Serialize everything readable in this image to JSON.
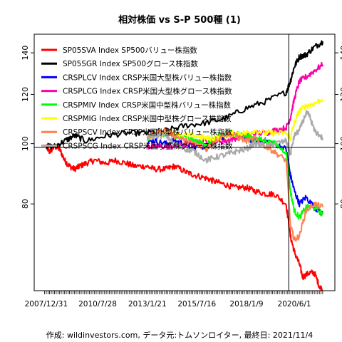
{
  "chart_data": {
    "type": "line",
    "title": "相対株価 vs S-P 500種 (1)",
    "caption": "作成: wildinvestors.com, データ元:トムソンロイター, 最終日: 2021/11/4",
    "xlabel": "",
    "ylabel": "",
    "x_range": [
      "2007-12-31",
      "2021-11-04"
    ],
    "x_tick_labels": [
      "2007/12/31",
      "2010/7/28",
      "2013/1/21",
      "2015/7/16",
      "2018/1/9",
      "2020/6/1"
    ],
    "x_tick_dates": [
      "2007-12-31",
      "2010-07-28",
      "2013-01-21",
      "2015-07-16",
      "2018-01-09",
      "2020-06-01"
    ],
    "ylim": [
      58,
      150
    ],
    "y_ticks": [
      80,
      100,
      120,
      140
    ],
    "y_log": true,
    "reference_line_y": 98.7,
    "reference_line_x": "2020-02-20",
    "grid": false,
    "legend_position": "top-left",
    "series": [
      {
        "name": "SP05SVA Index SP500バリュー株指数",
        "color": "#ff0000",
        "x": [
          "2007-12-31",
          "2008-03-01",
          "2008-06-01",
          "2008-09-01",
          "2008-12-01",
          "2009-03-01",
          "2009-06-01",
          "2009-09-01",
          "2010-01-01",
          "2010-06-01",
          "2011-01-01",
          "2011-06-01",
          "2012-01-01",
          "2012-06-01",
          "2013-01-01",
          "2013-06-01",
          "2014-01-01",
          "2014-06-01",
          "2015-01-01",
          "2015-06-01",
          "2016-01-01",
          "2016-06-01",
          "2016-12-01",
          "2017-06-01",
          "2018-01-01",
          "2018-06-01",
          "2019-01-01",
          "2019-06-01",
          "2020-01-01",
          "2020-03-20",
          "2020-06-01",
          "2020-09-01",
          "2020-11-01",
          "2021-03-01",
          "2021-06-01",
          "2021-09-01",
          "2021-11-04"
        ],
        "y": [
          99,
          97,
          99,
          98,
          94,
          92,
          91,
          92,
          93,
          94,
          93,
          94,
          93,
          92,
          92,
          91,
          91,
          92,
          90,
          89,
          88,
          87,
          86,
          85,
          85,
          84,
          83,
          83,
          80,
          71,
          67,
          64,
          61,
          62,
          62,
          59,
          58
        ]
      },
      {
        "name": "SP05SGR Index SP500グロース株指数",
        "color": "#000000",
        "x": [
          "2007-12-31",
          "2008-06-01",
          "2008-12-01",
          "2009-06-01",
          "2010-01-01",
          "2011-01-01",
          "2012-01-01",
          "2013-01-01",
          "2014-01-01",
          "2015-01-01",
          "2016-01-01",
          "2017-01-01",
          "2018-01-01",
          "2019-01-01",
          "2020-01-01",
          "2020-03-20",
          "2020-06-01",
          "2020-09-01",
          "2021-01-01",
          "2021-06-01",
          "2021-11-04"
        ],
        "y": [
          99,
          99,
          101,
          103,
          101,
          103,
          104,
          104,
          105,
          107,
          108,
          110,
          114,
          117,
          121,
          126,
          133,
          138,
          139,
          143,
          146
        ]
      },
      {
        "name": "CRSPLCV Index CRSP米国大型株バリュー株指数",
        "color": "#0000ff",
        "x": [
          "2013-01-21",
          "2013-06-01",
          "2014-01-01",
          "2014-06-01",
          "2015-01-01",
          "2015-06-01",
          "2016-01-01",
          "2016-06-01",
          "2017-01-01",
          "2017-06-01",
          "2018-01-01",
          "2018-06-01",
          "2019-01-01",
          "2019-06-01",
          "2020-01-01",
          "2020-03-20",
          "2020-06-01",
          "2020-09-01",
          "2021-01-01",
          "2021-06-01",
          "2021-11-04"
        ],
        "y": [
          101,
          101,
          100,
          101,
          100,
          99,
          99,
          101,
          103,
          104,
          102,
          101,
          101,
          100,
          98,
          89,
          84,
          80,
          82,
          79,
          77
        ]
      },
      {
        "name": "CRSPLCG Index CRSP米国大型株グロース株指数",
        "color": "#ff00aa",
        "x": [
          "2013-01-21",
          "2013-06-01",
          "2014-01-01",
          "2014-06-01",
          "2015-01-01",
          "2015-06-01",
          "2016-01-01",
          "2016-06-01",
          "2017-01-01",
          "2017-06-01",
          "2018-01-01",
          "2018-06-01",
          "2019-01-01",
          "2019-06-01",
          "2020-01-01",
          "2020-03-20",
          "2020-06-01",
          "2020-09-01",
          "2021-01-01",
          "2021-06-01",
          "2021-11-04"
        ],
        "y": [
          99,
          99,
          99,
          99,
          100,
          100,
          101,
          101,
          101,
          102,
          103,
          104,
          104,
          105,
          106,
          110,
          118,
          126,
          128,
          131,
          134
        ]
      },
      {
        "name": "CRSPMIV Index CRSP米国中型株バリュー株指数",
        "color": "#00ff00",
        "x": [
          "2013-01-21",
          "2013-06-01",
          "2014-01-01",
          "2014-06-01",
          "2015-01-01",
          "2015-06-01",
          "2016-01-01",
          "2016-06-01",
          "2017-01-01",
          "2017-06-01",
          "2018-01-01",
          "2018-06-01",
          "2019-01-01",
          "2019-06-01",
          "2020-01-01",
          "2020-03-20",
          "2020-06-01",
          "2020-09-01",
          "2021-01-01",
          "2021-06-01",
          "2021-11-04"
        ],
        "y": [
          102,
          103,
          104,
          103,
          102,
          101,
          100,
          102,
          104,
          104,
          103,
          102,
          101,
          100,
          97,
          84,
          78,
          76,
          79,
          79,
          77
        ]
      },
      {
        "name": "CRSPMIG Index CRSP米国中型株グロース株指数",
        "color": "#ffff00",
        "x": [
          "2013-01-21",
          "2013-06-01",
          "2014-01-01",
          "2014-06-01",
          "2015-01-01",
          "2015-06-01",
          "2016-01-01",
          "2016-06-01",
          "2017-01-01",
          "2017-06-01",
          "2018-01-01",
          "2018-06-01",
          "2019-01-01",
          "2019-06-01",
          "2020-01-01",
          "2020-03-20",
          "2020-06-01",
          "2020-09-01",
          "2021-01-01",
          "2021-06-01",
          "2021-11-04"
        ],
        "y": [
          102,
          103,
          104,
          104,
          103,
          103,
          102,
          102,
          103,
          104,
          104,
          105,
          104,
          104,
          104,
          102,
          108,
          113,
          115,
          116,
          118
        ]
      },
      {
        "name": "CRSPSCV Index CRSP米国小型株バリュー株指数",
        "color": "#ff8050",
        "x": [
          "2013-01-21",
          "2013-06-01",
          "2014-01-01",
          "2014-06-01",
          "2015-01-01",
          "2015-06-01",
          "2016-01-01",
          "2016-06-01",
          "2017-01-01",
          "2017-06-01",
          "2018-01-01",
          "2018-06-01",
          "2019-01-01",
          "2019-06-01",
          "2020-01-01",
          "2020-03-20",
          "2020-06-01",
          "2020-09-01",
          "2021-01-01",
          "2021-06-01",
          "2021-11-04"
        ],
        "y": [
          102,
          104,
          105,
          103,
          101,
          100,
          98,
          101,
          104,
          103,
          101,
          102,
          99,
          97,
          94,
          74,
          70,
          71,
          78,
          80,
          79
        ]
      },
      {
        "name": "CRSPSCG Index CRSP米国小型株グロース株指数",
        "color": "#aaaaaa",
        "x": [
          "2013-01-21",
          "2013-06-01",
          "2014-01-01",
          "2014-06-01",
          "2015-01-01",
          "2015-06-01",
          "2016-01-01",
          "2016-06-01",
          "2017-01-01",
          "2017-06-01",
          "2018-01-01",
          "2018-06-01",
          "2019-01-01",
          "2019-06-01",
          "2020-01-01",
          "2020-03-20",
          "2020-06-01",
          "2020-09-01",
          "2021-01-01",
          "2021-03-01",
          "2021-06-01",
          "2021-11-04"
        ],
        "y": [
          102,
          103,
          103,
          100,
          98,
          97,
          94,
          95,
          96,
          97,
          98,
          100,
          99,
          100,
          101,
          96,
          103,
          105,
          112,
          111,
          105,
          102
        ]
      }
    ]
  }
}
